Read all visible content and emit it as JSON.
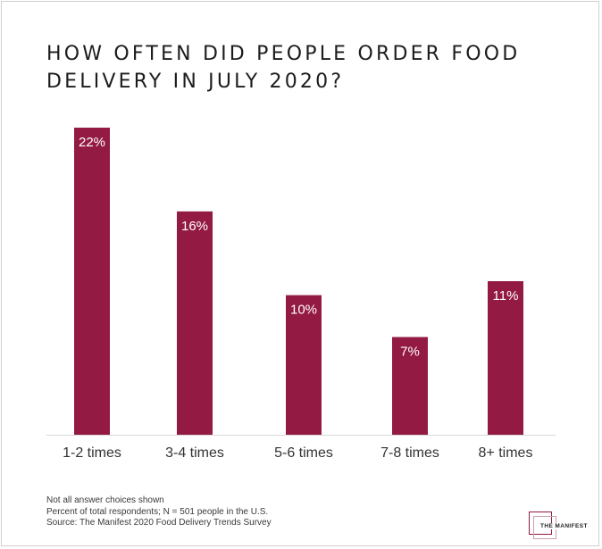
{
  "chart_data": {
    "type": "bar",
    "title": "HOW OFTEN DID PEOPLE ORDER FOOD DELIVERY IN JULY 2020?",
    "categories": [
      "1-2 times",
      "3-4 times",
      "5-6 times",
      "7-8 times",
      "8+ times"
    ],
    "values": [
      22,
      16,
      10,
      7,
      11
    ],
    "value_labels": [
      "22%",
      "16%",
      "10%",
      "7%",
      "11%"
    ],
    "ylim": [
      0,
      22
    ],
    "grid": false,
    "bar_color": "#931a42"
  },
  "notes": [
    "Not all answer choices shown",
    "Percent of total respondents; N = 501 people in the U.S.",
    "Source: The Manifest 2020 Food Delivery Trends Survey"
  ],
  "logo": {
    "text": "THE MANIFEST",
    "icon": "overlapping-squares-logo"
  }
}
